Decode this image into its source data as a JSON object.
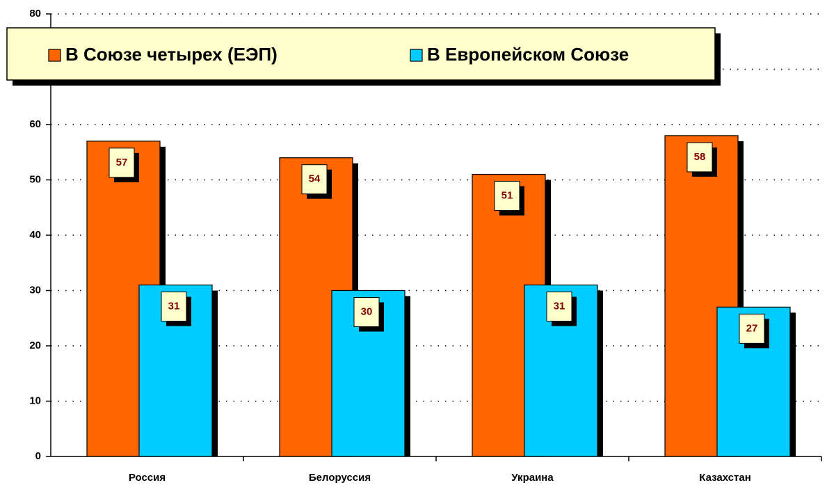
{
  "chart_data": {
    "type": "bar",
    "categories": [
      "Россия",
      "Белоруссия",
      "Украина",
      "Казахстан"
    ],
    "series": [
      {
        "name": "В Союзе четырех (ЕЭП)",
        "color": "#ff6600",
        "values": [
          57,
          54,
          51,
          58
        ]
      },
      {
        "name": "В Европейском Союзе",
        "color": "#00ccff",
        "values": [
          31,
          30,
          31,
          27
        ]
      }
    ],
    "ylim": [
      0,
      80
    ],
    "yticks": [
      0,
      10,
      20,
      30,
      40,
      50,
      60,
      70,
      80
    ],
    "grid": true,
    "legend": "top"
  }
}
